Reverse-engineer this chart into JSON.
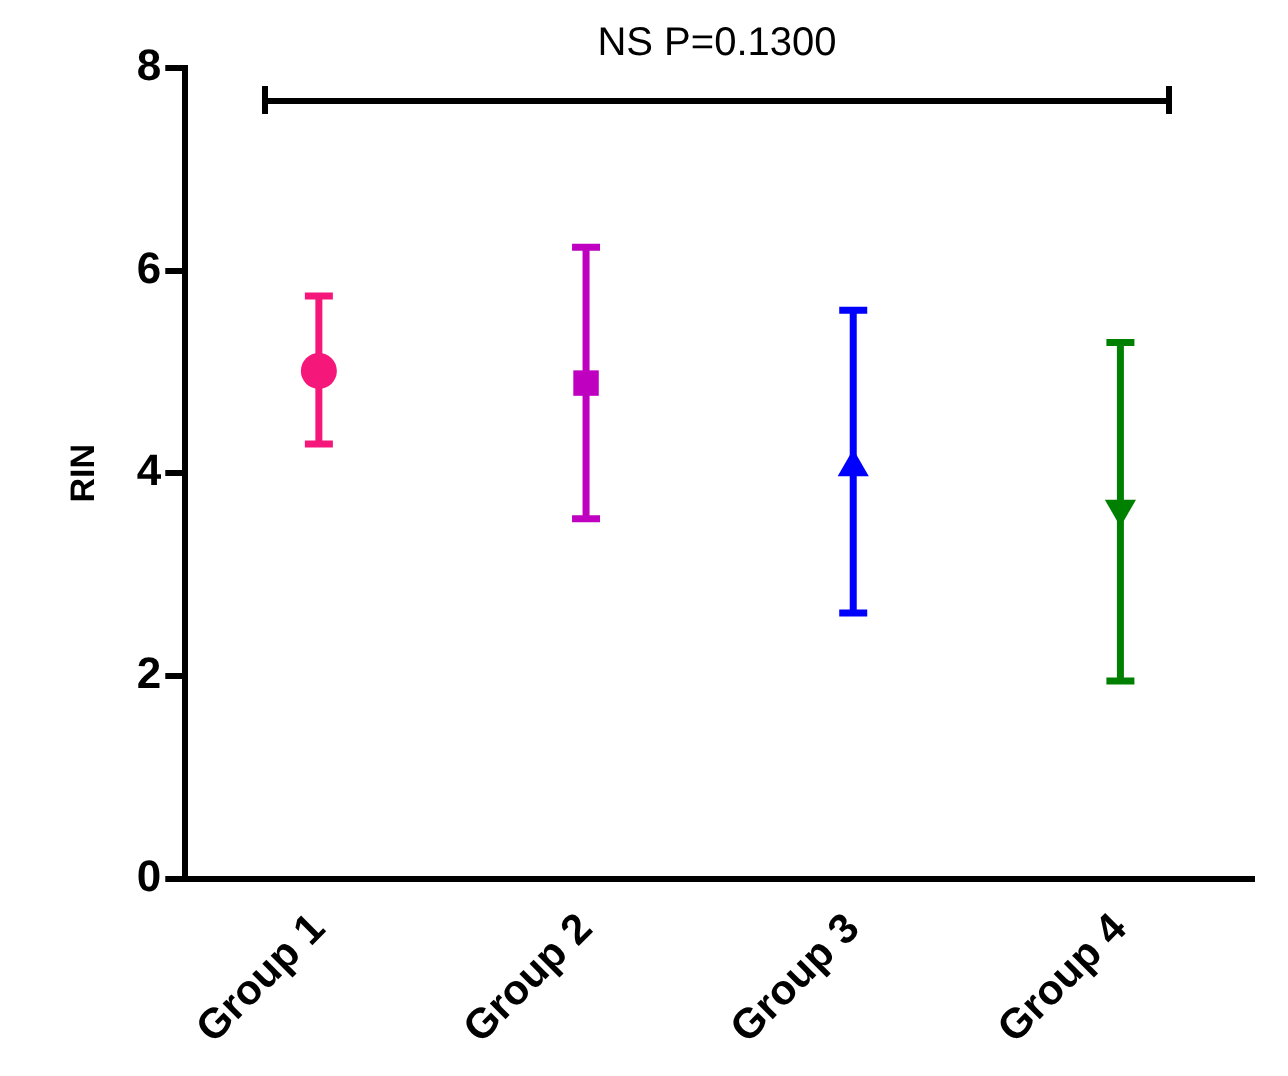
{
  "chart_data": {
    "type": "scatter",
    "ylabel": "RIN",
    "categories": [
      "Group 1",
      "Group 2",
      "Group 3",
      "Group 4"
    ],
    "annotations": [
      "NS P=0.1300"
    ],
    "ylim": [
      0,
      8
    ],
    "yticks": [
      0,
      2,
      4,
      6,
      8
    ],
    "grid": false,
    "legend": false,
    "series": [
      {
        "color": "#f5187a",
        "marker": "circle",
        "x": [
          "Group 1"
        ],
        "values": [
          5.01
        ],
        "errors": [
          [
            4.29,
            5.75
          ]
        ]
      },
      {
        "color": "#c000c0",
        "marker": "square",
        "x": [
          "Group 2"
        ],
        "values": [
          4.89
        ],
        "errors": [
          [
            3.55,
            6.23
          ]
        ]
      },
      {
        "color": "#0000ff",
        "marker": "triangle",
        "x": [
          "Group 3"
        ],
        "values": [
          4.06
        ],
        "errors": [
          [
            2.62,
            5.61
          ]
        ]
      },
      {
        "color": "#008000",
        "marker": "triangle-down",
        "x": [
          "Group 4"
        ],
        "values": [
          3.65
        ],
        "errors": [
          [
            1.95,
            5.29
          ]
        ]
      }
    ]
  }
}
